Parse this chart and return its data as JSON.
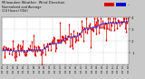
{
  "title1": "Milwaukee Weather  Wind Direction",
  "title2": "Normalized and Average",
  "title3": "(24 Hours) (Old)",
  "bg_color": "#c8c8c8",
  "plot_bg_color": "#ffffff",
  "red_color": "#dd0000",
  "blue_color": "#0000cc",
  "ylim": [
    0,
    360
  ],
  "ytick_vals": [
    90,
    180,
    270,
    360
  ],
  "ytick_labels": [
    "1",
    "2",
    "3",
    "4"
  ],
  "n_points": 144,
  "seed": 42,
  "legend_norm_color": "#dd0000",
  "legend_avg_color": "#0000cc"
}
